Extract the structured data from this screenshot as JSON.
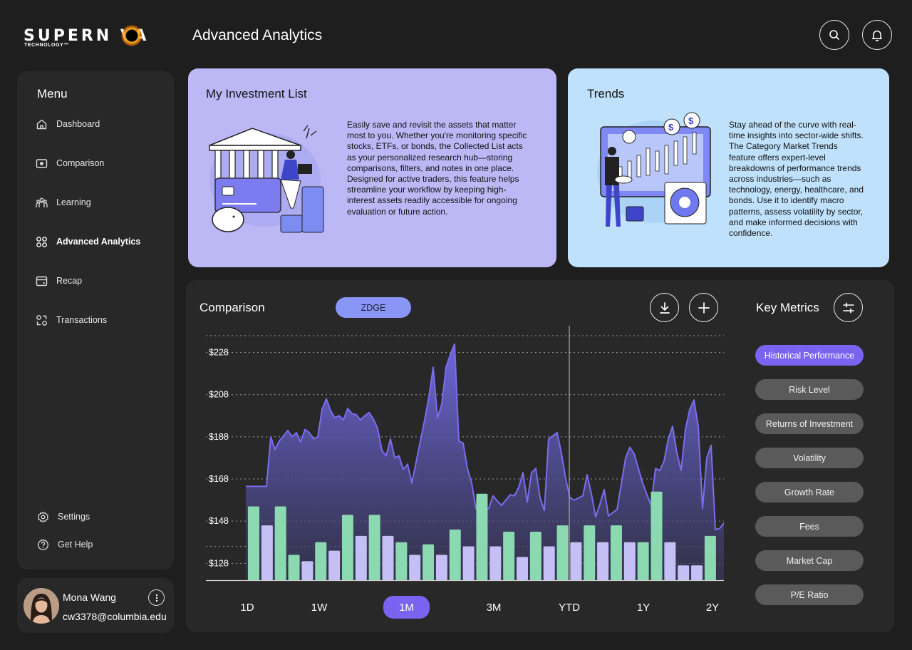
{
  "brand": {
    "name": "SUPERN VA",
    "tagline": "TECHNOLOGY™"
  },
  "header": {
    "title": "Advanced Analytics",
    "search_icon": "search-icon",
    "notifications_icon": "bell-icon"
  },
  "sidebar": {
    "menu_title": "Menu",
    "items": [
      {
        "label": "Dashboard",
        "icon": "home-icon"
      },
      {
        "label": "Comparison",
        "icon": "compare-icon"
      },
      {
        "label": "Learning",
        "icon": "people-icon"
      },
      {
        "label": "Advanced Analytics",
        "icon": "grid-icon",
        "active": true
      },
      {
        "label": "Recap",
        "icon": "card-icon"
      },
      {
        "label": "Transactions",
        "icon": "transactions-icon"
      }
    ],
    "footer_items": [
      {
        "label": "Settings",
        "icon": "gear-icon"
      },
      {
        "label": "Get Help",
        "icon": "help-icon"
      }
    ]
  },
  "user": {
    "name": "Mona Wang",
    "email": "cw3378@columbia.edu"
  },
  "cards": {
    "investment": {
      "title": "My Investment List",
      "text": "Easily save and revisit the assets that matter most to you. Whether you're monitoring specific stocks, ETFs, or bonds, the Collected List acts as your personalized research hub—storing comparisons, filters, and notes in one place. Designed for active traders, this feature helps streamline your workflow by keeping high-interest assets readily accessible for ongoing evaluation or future action."
    },
    "trends": {
      "title": "Trends",
      "text": "Stay ahead of the curve with real-time insights into sector-wide shifts. The Category Market Trends feature offers expert-level breakdowns of performance trends across industries—such as technology, energy, healthcare, and bonds. Use it to identify macro patterns, assess volatility by sector, and make informed decisions with confidence."
    }
  },
  "comparison": {
    "title": "Comparison",
    "ticker": "ZDGE",
    "download_icon": "download-icon",
    "add_icon": "plus-icon",
    "ranges": [
      "1D",
      "1W",
      "1M",
      "3M",
      "YTD",
      "1Y",
      "2Y"
    ],
    "active_range": "1M"
  },
  "key_metrics": {
    "title": "Key Metrics",
    "filter_icon": "sliders-icon",
    "items": [
      "Historical Performance",
      "Risk Level",
      "Returns of Investment",
      "Volatility",
      "Growth Rate",
      "Fees",
      "Market Cap",
      "P/E Ratio"
    ],
    "active": "Historical Performance"
  },
  "colors": {
    "accent": "#7b63f2",
    "area": "#6e67d8",
    "bar_green": "#8ad9b0",
    "bar_lavender": "#c4c0f5",
    "card_purple": "#bcb8f5",
    "card_blue": "#bfe1fb"
  },
  "chart_data": {
    "type": "area",
    "ylim": [
      120,
      238
    ],
    "yticks": [
      128,
      148,
      168,
      188,
      208,
      228
    ],
    "ytick_labels": [
      "$128",
      "$148",
      "$168",
      "$188",
      "$208",
      "$228"
    ],
    "grid": true,
    "price": {
      "x": [
        0,
        29,
        35,
        41,
        47,
        53,
        59,
        65,
        71,
        77,
        83,
        89,
        95,
        101,
        107,
        113,
        119,
        125,
        131,
        137,
        143,
        149,
        155,
        161,
        167,
        173,
        179,
        185,
        191,
        197,
        203,
        209,
        215,
        221,
        227,
        233,
        239,
        245,
        251,
        257,
        263,
        269,
        275,
        281,
        287,
        293,
        299,
        305,
        311,
        317,
        323,
        329,
        335,
        341,
        347,
        353,
        359,
        365,
        371,
        377,
        383,
        389,
        395,
        401,
        407,
        413,
        419,
        425,
        431,
        437,
        443,
        449,
        455,
        461,
        467,
        473,
        479,
        485,
        491,
        497,
        503,
        509,
        515,
        521,
        527,
        533,
        539,
        545,
        551,
        557,
        563,
        569,
        575,
        581,
        587,
        593,
        599,
        605,
        611,
        617,
        623,
        629,
        635,
        641,
        647,
        653,
        659,
        665,
        671
      ],
      "y": [
        164.5,
        164.5,
        188,
        182,
        186,
        188.5,
        191,
        188,
        190,
        185.5,
        191.5,
        190,
        187,
        188,
        201,
        206,
        200.5,
        197,
        198,
        196,
        201.5,
        199,
        198.5,
        196,
        198,
        199.5,
        196.5,
        192,
        181.5,
        179,
        187,
        178,
        179,
        172.5,
        175,
        166,
        176,
        186,
        196,
        207,
        221,
        197,
        203.5,
        221,
        227,
        232,
        186,
        185,
        173,
        166,
        154,
        154,
        153,
        154,
        160,
        157.5,
        155.5,
        158,
        160.5,
        160,
        164,
        171,
        157,
        171,
        173,
        159,
        153,
        187,
        188.5,
        190,
        180,
        168,
        159,
        158,
        159,
        160,
        170,
        161,
        150,
        156,
        163,
        150.5,
        152,
        153.5,
        165.5,
        178,
        183,
        180,
        173,
        166,
        160.5,
        155.5,
        173,
        172,
        176.5,
        187,
        193,
        180.5,
        172,
        191.5,
        201,
        205.5,
        193,
        154,
        178,
        184,
        144,
        144.5,
        147
      ]
    },
    "bars": {
      "values": [
        155,
        146,
        155,
        132,
        129,
        138,
        134,
        151,
        141,
        151,
        141,
        138,
        132,
        137,
        132,
        144,
        136,
        161,
        136,
        143,
        131,
        143,
        136,
        146,
        138,
        146,
        138,
        146,
        138,
        138,
        162,
        138,
        127,
        127,
        141
      ],
      "colors": [
        "g",
        "l",
        "g",
        "g",
        "l",
        "g",
        "l",
        "g",
        "l",
        "g",
        "l",
        "g",
        "l",
        "g",
        "l",
        "g",
        "l",
        "g",
        "l",
        "g",
        "l",
        "g",
        "l",
        "g",
        "l",
        "g",
        "l",
        "g",
        "l",
        "g",
        "g",
        "l",
        "l",
        "l",
        "g"
      ]
    }
  }
}
